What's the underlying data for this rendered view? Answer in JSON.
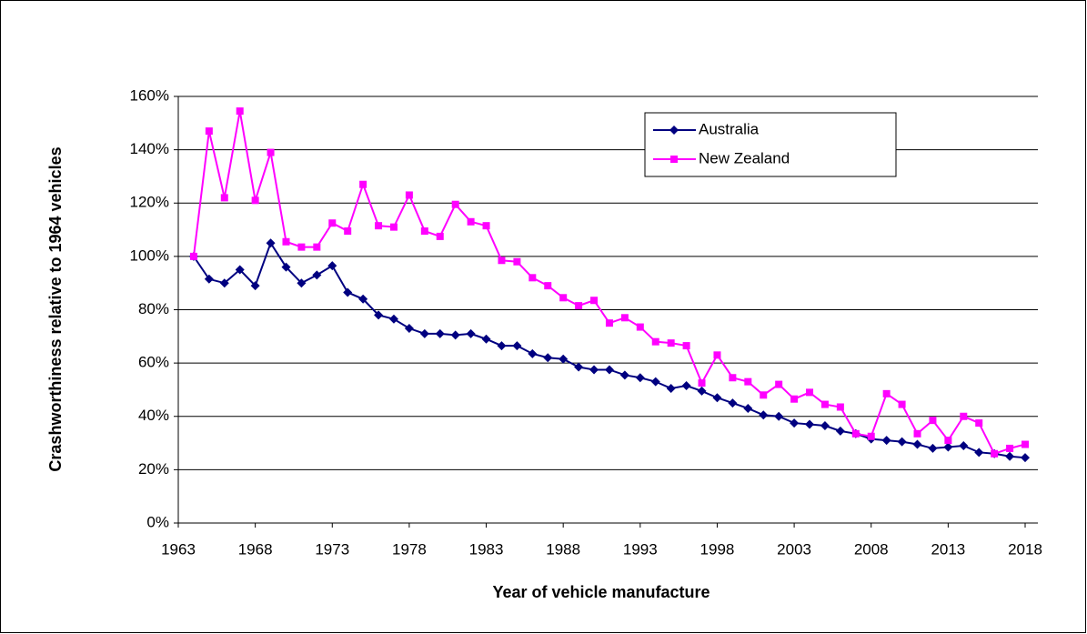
{
  "chart_data": {
    "type": "line",
    "x_label": "Year of vehicle manufacture",
    "y_label": "Crashworthiness relative to 1964 vehicles",
    "x": [
      1964,
      1965,
      1966,
      1967,
      1968,
      1969,
      1970,
      1971,
      1972,
      1973,
      1974,
      1975,
      1976,
      1977,
      1978,
      1979,
      1980,
      1981,
      1982,
      1983,
      1984,
      1985,
      1986,
      1987,
      1988,
      1989,
      1990,
      1991,
      1992,
      1993,
      1994,
      1995,
      1996,
      1997,
      1998,
      1999,
      2000,
      2001,
      2002,
      2003,
      2004,
      2005,
      2006,
      2007,
      2008,
      2009,
      2010,
      2011,
      2012,
      2013,
      2014,
      2015,
      2016,
      2017,
      2018
    ],
    "series": [
      {
        "name": "Australia",
        "color": "#000080",
        "marker": "diamond",
        "values": [
          100,
          91.5,
          90,
          95,
          89,
          105,
          96,
          90,
          93,
          96.5,
          86.5,
          84,
          78,
          76.5,
          73,
          71,
          71,
          70.5,
          71,
          69,
          66.5,
          66.5,
          63.5,
          62,
          61.5,
          58.5,
          57.5,
          57.5,
          55.5,
          54.5,
          53,
          50.5,
          51.5,
          49.5,
          47,
          45,
          43,
          40.5,
          40,
          37.5,
          37,
          36.5,
          34.5,
          33.5,
          31.5,
          31,
          30.5,
          29.5,
          28,
          28.5,
          29,
          26.5,
          26,
          25,
          24.5
        ]
      },
      {
        "name": "New Zealand",
        "color": "#ff00ff",
        "marker": "square",
        "values": [
          100,
          147,
          122,
          154.5,
          121,
          139,
          105.5,
          103.5,
          103.5,
          112.5,
          109.5,
          127,
          111.5,
          111,
          123,
          109.5,
          107.5,
          119.5,
          113,
          111.5,
          98.5,
          98,
          92,
          89,
          84.5,
          81.5,
          83.5,
          75,
          77,
          73.5,
          68,
          67.5,
          66.5,
          52.5,
          63,
          54.5,
          53,
          48,
          52,
          46.5,
          49,
          44.5,
          43.5,
          33.5,
          32.5,
          48.5,
          44.5,
          33.5,
          38.5,
          31,
          40,
          37.5,
          26,
          28,
          29.5
        ]
      }
    ],
    "xlim": [
      1963,
      2018
    ],
    "xticks": [
      1963,
      1968,
      1973,
      1978,
      1983,
      1988,
      1993,
      1998,
      2003,
      2008,
      2013,
      2018
    ],
    "ylim": [
      0,
      160
    ],
    "yticks": [
      {
        "value": 0,
        "label": "0%"
      },
      {
        "value": 20,
        "label": "20%"
      },
      {
        "value": 40,
        "label": "40%"
      },
      {
        "value": 60,
        "label": "60%"
      },
      {
        "value": 80,
        "label": "80%"
      },
      {
        "value": 100,
        "label": "100%"
      },
      {
        "value": 120,
        "label": "120%"
      },
      {
        "value": 140,
        "label": "140%"
      },
      {
        "value": 160,
        "label": "160%"
      }
    ],
    "grid": true
  }
}
